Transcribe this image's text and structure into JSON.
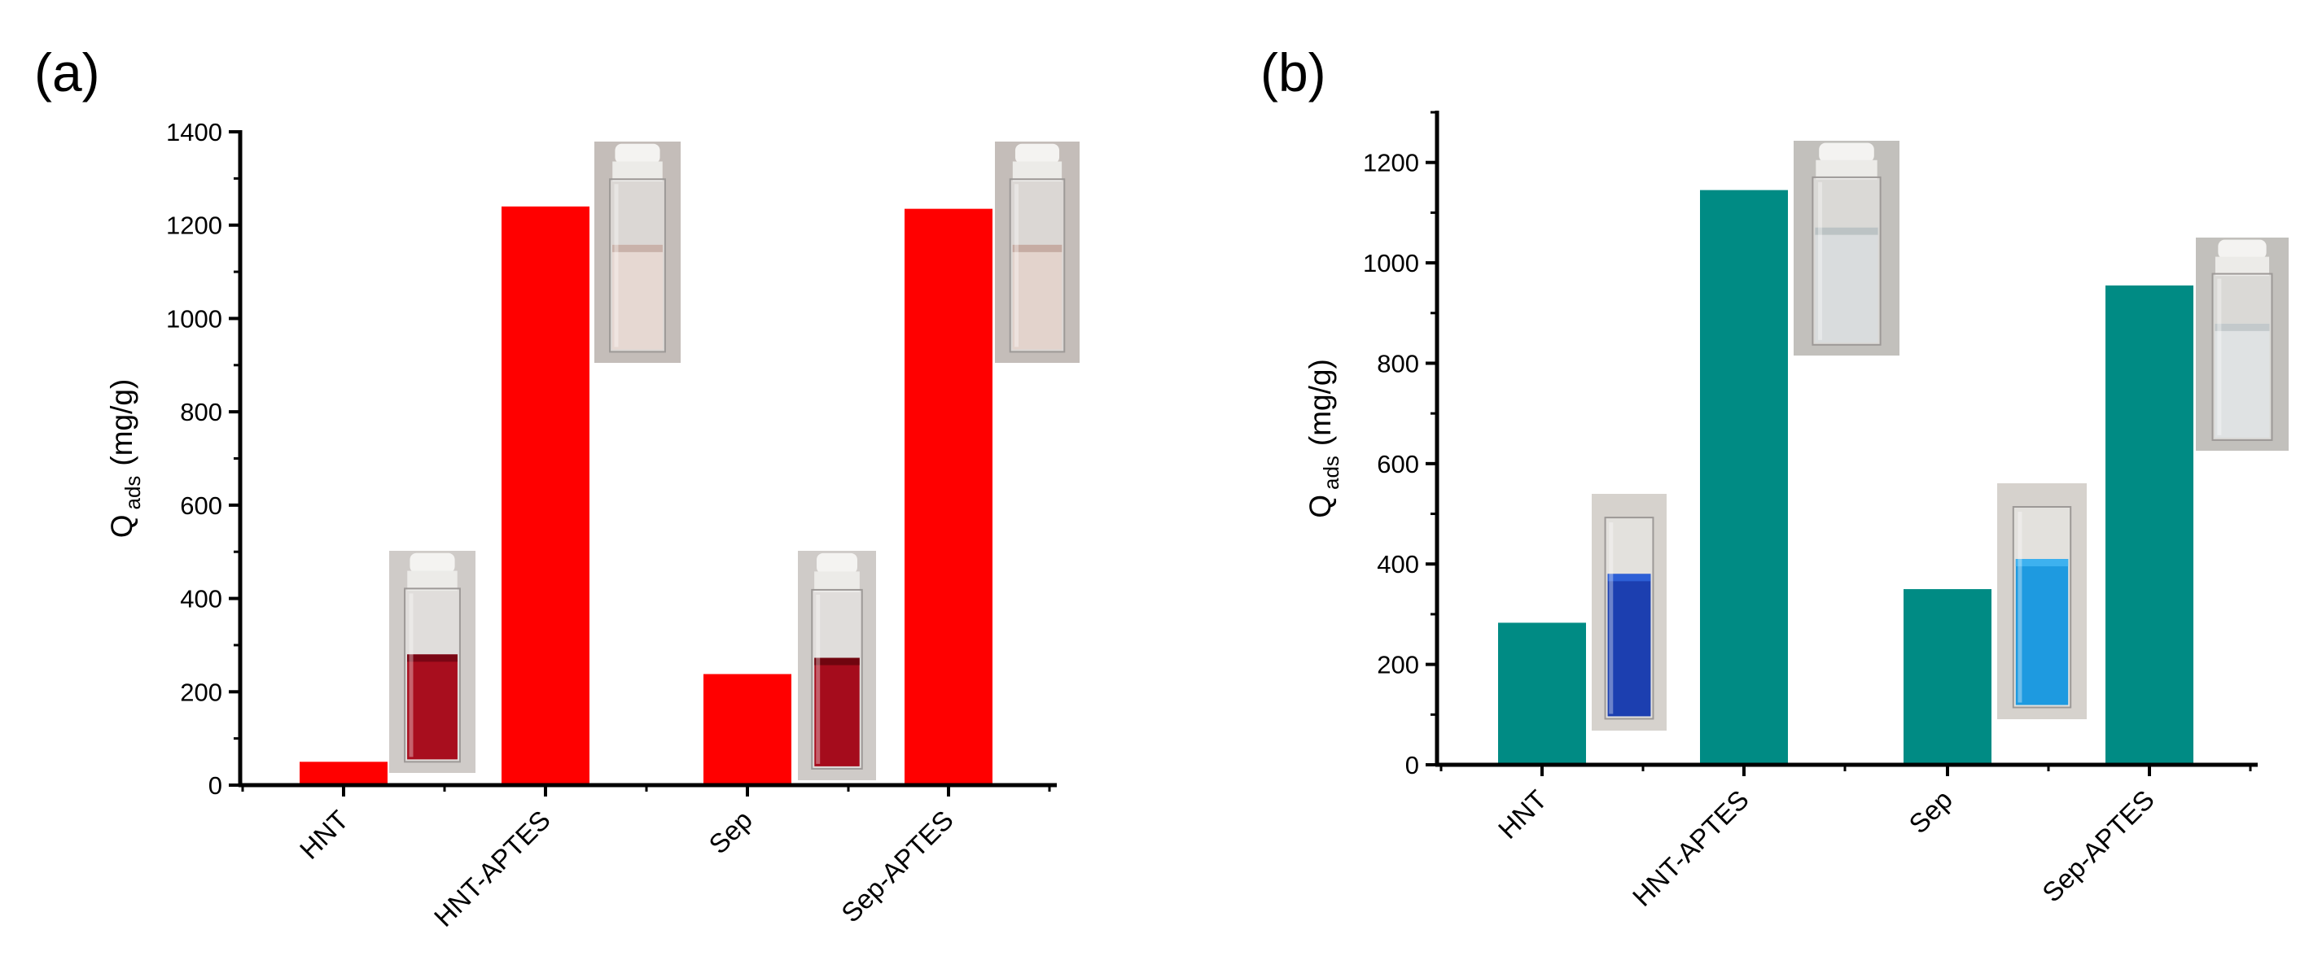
{
  "chart_data": [
    {
      "type": "bar",
      "panel_label": "(a)",
      "categories": [
        "HNT",
        "HNT-APTES",
        "Sep",
        "Sep-APTES"
      ],
      "values": [
        50,
        1240,
        238,
        1235
      ],
      "bar_color": "#ff0000",
      "ylabel_main": "Q",
      "ylabel_sub": "ads",
      "ylabel_unit": "(mg/g)",
      "xlabel": "",
      "ylim": [
        0,
        1400
      ],
      "yticks": [
        "0",
        "200",
        "400",
        "600",
        "800",
        "1000",
        "1200",
        "1400"
      ],
      "grid": false,
      "inset_photos": [
        {
          "category": "HNT",
          "liquid": "#a80e1e",
          "liquid_top": "#7a0614",
          "fill": 0.62,
          "bg": "#cfcbc8",
          "cap": true
        },
        {
          "category": "HNT-APTES",
          "liquid": "#e6d8d2",
          "liquid_top": "#c9b2aa",
          "fill": 0.62,
          "bg": "#c4bdb9",
          "cap": true
        },
        {
          "category": "Sep",
          "liquid": "#a50c1c",
          "liquid_top": "#70050f",
          "fill": 0.62,
          "bg": "#cfcbc8",
          "cap": true
        },
        {
          "category": "Sep-APTES",
          "liquid": "#e3d3cc",
          "liquid_top": "#c6aca3",
          "fill": 0.62,
          "bg": "#c4bdb9",
          "cap": true
        }
      ]
    },
    {
      "type": "bar",
      "panel_label": "(b)",
      "categories": [
        "HNT",
        "HNT-APTES",
        "Sep",
        "Sep-APTES"
      ],
      "values": [
        283,
        1145,
        350,
        955
      ],
      "bar_color": "#008b84",
      "ylabel_main": "Q",
      "ylabel_sub": "ads",
      "ylabel_unit": "(mg/g)",
      "xlabel": "",
      "ylim": [
        0,
        1300
      ],
      "yticks": [
        "0",
        "200",
        "400",
        "600",
        "800",
        "1000",
        "1200"
      ],
      "grid": false,
      "inset_photos": [
        {
          "category": "HNT",
          "liquid": "#1c3fb0",
          "liquid_top": "#2d5fd6",
          "fill": 0.72,
          "bg": "#d6d2cd",
          "cap": false
        },
        {
          "category": "HNT-APTES",
          "liquid": "#d9dcdd",
          "liquid_top": "#bcc3c4",
          "fill": 0.7,
          "bg": "#c2c0bc",
          "cap": true
        },
        {
          "category": "Sep",
          "liquid": "#1e9ae0",
          "liquid_top": "#3db1ef",
          "fill": 0.74,
          "bg": "#d6d2cd",
          "cap": false
        },
        {
          "category": "Sep-APTES",
          "liquid": "#dfe2e3",
          "liquid_top": "#c3c9cb",
          "fill": 0.7,
          "bg": "#c2c0bc",
          "cap": true
        }
      ]
    }
  ]
}
